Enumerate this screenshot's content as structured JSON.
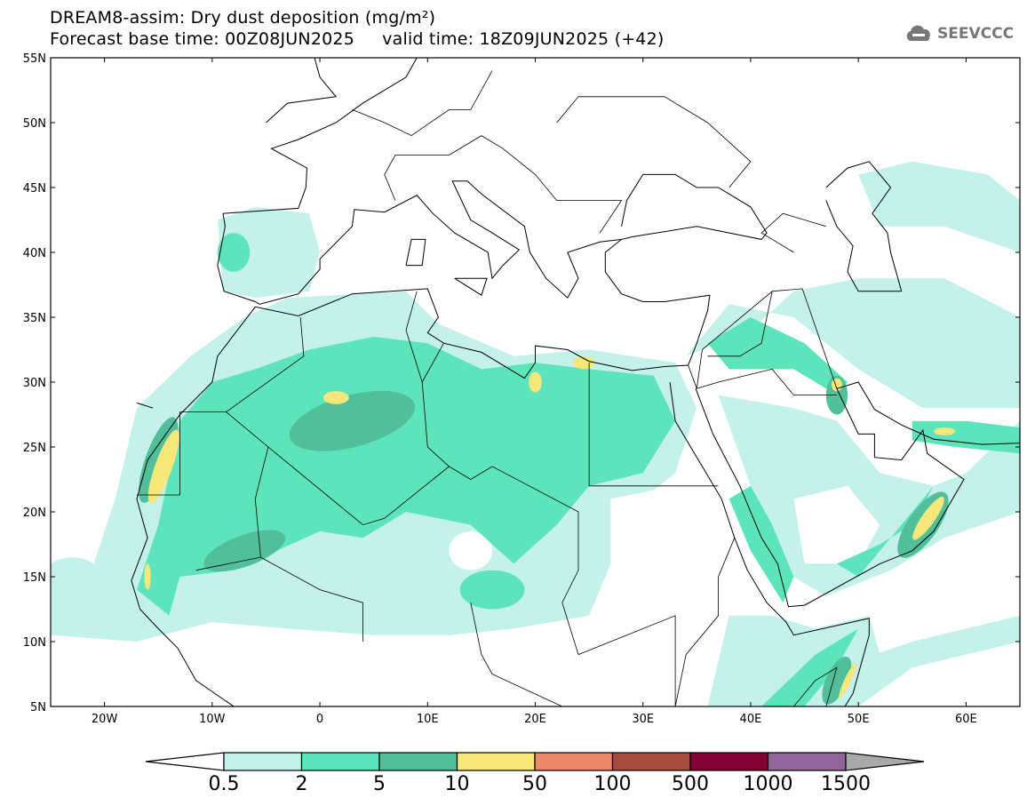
{
  "title": {
    "line1": "DREAM8-assim: Dry dust deposition (mg/m²)",
    "line2": "Forecast base time: 00Z08JUN2025     valid time: 18Z09JUN2025 (+42)"
  },
  "logo": {
    "text": "SEEVCCC"
  },
  "map": {
    "lon_range": [
      -25,
      65
    ],
    "lat_range": [
      5,
      55
    ],
    "lat_ticks": [
      "55N",
      "50N",
      "45N",
      "40N",
      "35N",
      "30N",
      "25N",
      "20N",
      "15N",
      "10N",
      "5N"
    ],
    "lon_ticks": [
      "20W",
      "10W",
      "0",
      "10E",
      "20E",
      "30E",
      "40E",
      "50E",
      "60E"
    ]
  },
  "colorbar": {
    "levels": [
      "0.5",
      "2",
      "5",
      "10",
      "50",
      "100",
      "500",
      "1000",
      "1500"
    ],
    "colors": [
      "#c4f2eb",
      "#5ee4bc",
      "#52bf9b",
      "#f5e77a",
      "#e98966",
      "#a84b3e",
      "#820031",
      "#8f6699"
    ],
    "over_color": "#a9a9a9"
  }
}
